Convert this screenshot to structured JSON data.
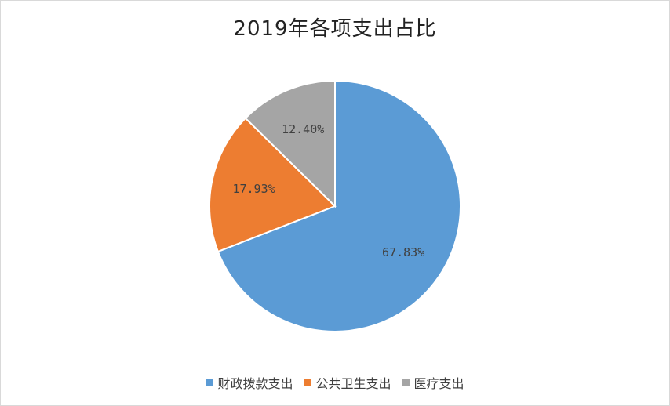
{
  "chart_data": {
    "type": "pie",
    "title": "2019年各项支出占比",
    "categories": [
      "财政拨款支出",
      "公共卫生支出",
      "医疗支出"
    ],
    "values": [
      67.83,
      17.93,
      12.4
    ],
    "data_labels": [
      "67.83%",
      "17.93%",
      "12.40%"
    ],
    "colors": [
      "#5b9bd5",
      "#ed7d31",
      "#a5a5a5"
    ],
    "legend_position": "bottom"
  }
}
